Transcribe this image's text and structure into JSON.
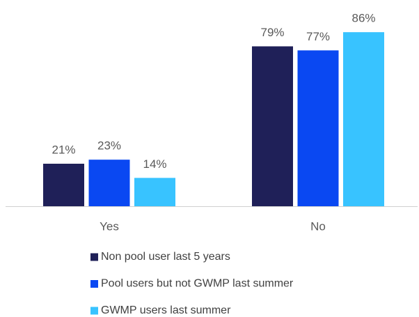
{
  "chart_data": {
    "type": "bar",
    "categories": [
      "Yes",
      "No"
    ],
    "series": [
      {
        "name": "Non pool user last 5 years",
        "color": "#1f2058",
        "values": [
          21,
          79
        ],
        "value_labels": [
          "21%",
          "79%"
        ]
      },
      {
        "name": "Pool users but not GWMP last summer",
        "color": "#0a48f2",
        "values": [
          23,
          77
        ],
        "value_labels": [
          "23%",
          "77%"
        ]
      },
      {
        "name": "GWMP users last summer",
        "color": "#38c3ff",
        "values": [
          14,
          86
        ],
        "value_labels": [
          "14%",
          "86%"
        ]
      }
    ]
  }
}
